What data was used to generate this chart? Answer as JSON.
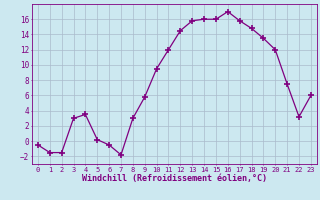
{
  "x": [
    0,
    1,
    2,
    3,
    4,
    5,
    6,
    7,
    8,
    9,
    10,
    11,
    12,
    13,
    14,
    15,
    16,
    17,
    18,
    19,
    20,
    21,
    22,
    23
  ],
  "y": [
    -0.5,
    -1.5,
    -1.5,
    3.0,
    3.5,
    0.2,
    -0.5,
    -1.8,
    3.0,
    5.8,
    9.5,
    12.0,
    14.5,
    15.8,
    16.0,
    16.0,
    17.0,
    15.8,
    14.8,
    13.5,
    12.0,
    7.5,
    3.2,
    6.0
  ],
  "line_color": "#800080",
  "marker": "+",
  "marker_size": 4,
  "bg_color": "#cce8f0",
  "grid_color": "#aabbcc",
  "tick_color": "#800080",
  "label_color": "#800080",
  "xlabel": "Windchill (Refroidissement éolien,°C)",
  "ylim": [
    -3,
    18
  ],
  "yticks": [
    -2,
    0,
    2,
    4,
    6,
    8,
    10,
    12,
    14,
    16
  ],
  "xticks": [
    0,
    1,
    2,
    3,
    4,
    5,
    6,
    7,
    8,
    9,
    10,
    11,
    12,
    13,
    14,
    15,
    16,
    17,
    18,
    19,
    20,
    21,
    22,
    23
  ]
}
